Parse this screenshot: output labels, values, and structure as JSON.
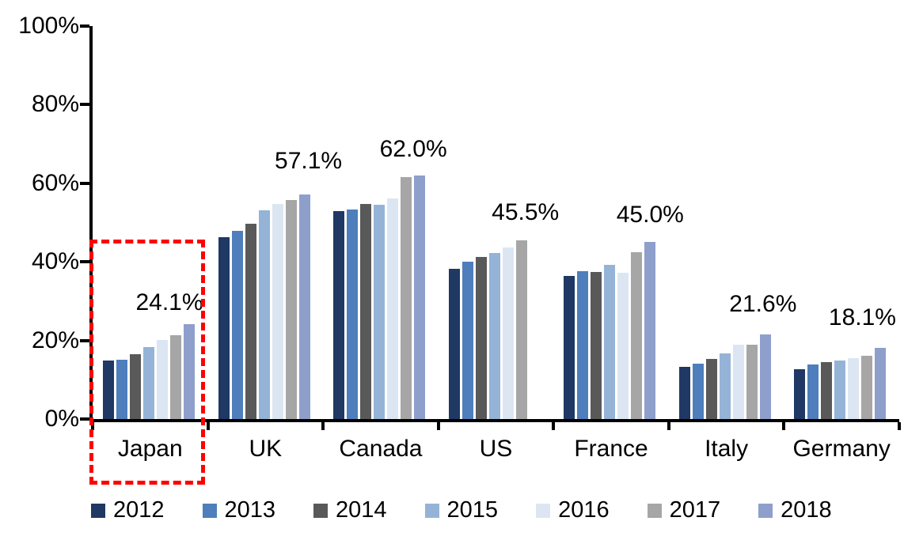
{
  "chart_data": {
    "type": "bar",
    "title": "",
    "xlabel": "",
    "ylabel": "",
    "ylim": [
      0,
      100
    ],
    "ytick_labels": [
      "100%",
      "80%",
      "60%",
      "40%",
      "20%",
      "0%"
    ],
    "grid": false,
    "legend_position": "bottom",
    "categories": [
      "Japan",
      "UK",
      "Canada",
      "US",
      "France",
      "Italy",
      "Germany"
    ],
    "series": [
      {
        "name": "2012",
        "color": "#1F3864",
        "values": [
          14.8,
          46.3,
          53.0,
          38.2,
          36.5,
          13.3,
          12.6
        ]
      },
      {
        "name": "2013",
        "color": "#4E7EBB",
        "values": [
          15.0,
          47.8,
          53.3,
          40.0,
          37.6,
          14.0,
          13.9
        ]
      },
      {
        "name": "2014",
        "color": "#595959",
        "values": [
          16.6,
          49.8,
          54.8,
          41.2,
          37.5,
          15.2,
          14.4
        ]
      },
      {
        "name": "2015",
        "color": "#95B3D7",
        "values": [
          18.3,
          53.1,
          54.6,
          42.3,
          39.2,
          16.8,
          14.8
        ]
      },
      {
        "name": "2016",
        "color": "#DCE6F2",
        "values": [
          20.2,
          54.8,
          56.1,
          43.6,
          37.3,
          18.9,
          15.4
        ]
      },
      {
        "name": "2017",
        "color": "#A6A6A6",
        "values": [
          21.3,
          55.7,
          61.5,
          45.5,
          42.4,
          19.0,
          16.0
        ]
      },
      {
        "name": "2018",
        "color": "#8E9FCB",
        "values": [
          24.1,
          57.1,
          62.0,
          null,
          45.0,
          21.6,
          18.1
        ]
      }
    ],
    "point_labels": [
      "24.1%",
      "57.1%",
      "62.0%",
      "45.5%",
      "45.0%",
      "21.6%",
      "18.1%"
    ],
    "annotations": {
      "highlight_country": "Japan",
      "highlight_style_color": "#FF0000"
    }
  }
}
